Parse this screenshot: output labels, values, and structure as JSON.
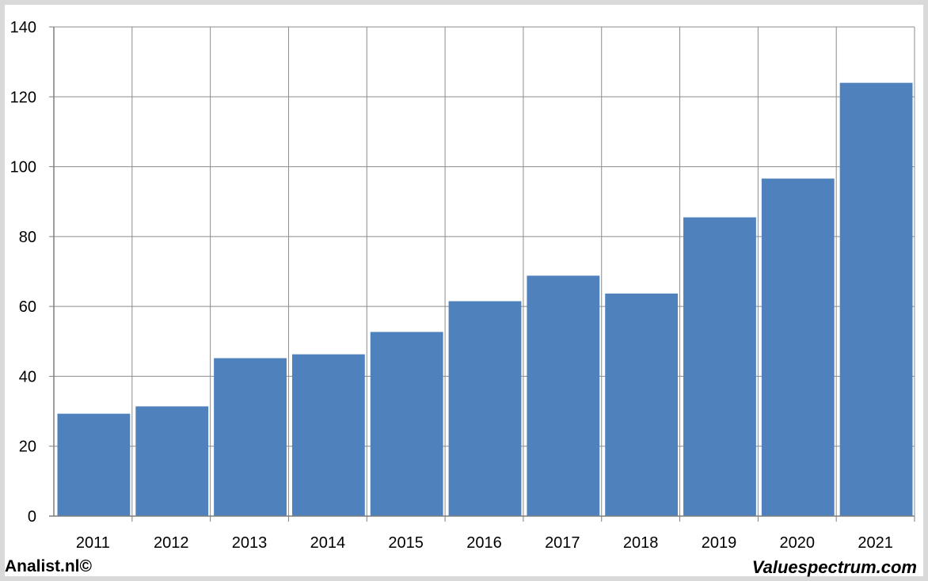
{
  "chart_data": {
    "type": "bar",
    "categories": [
      "2011",
      "2012",
      "2013",
      "2014",
      "2015",
      "2016",
      "2017",
      "2018",
      "2019",
      "2020",
      "2021"
    ],
    "values": [
      29.3,
      31.4,
      45.2,
      46.3,
      52.7,
      61.5,
      68.8,
      63.7,
      85.5,
      96.6,
      124.0
    ],
    "ylim": [
      0,
      140
    ],
    "yticks": [
      0,
      20,
      40,
      60,
      80,
      100,
      120,
      140
    ],
    "grid": true,
    "bar_color": "#4f81bd",
    "title": "",
    "xlabel": "",
    "ylabel": ""
  },
  "footer": {
    "left": "Analist.nl©",
    "right": "Valuespectrum.com"
  }
}
